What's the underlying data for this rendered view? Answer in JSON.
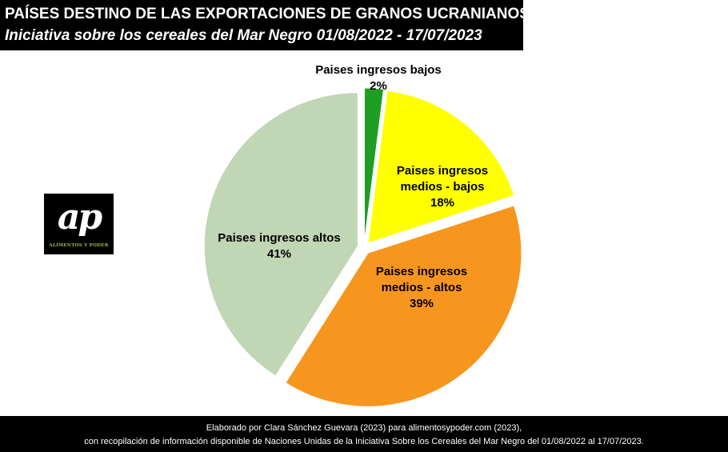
{
  "header": {
    "title": "PAÍSES DESTINO DE LAS EXPORTACIONES DE GRANOS UCRANIANOS",
    "subtitle": "Iniciativa sobre los cereales del Mar Negro 01/08/2022 - 17/07/2023"
  },
  "logo": {
    "mark": "ap",
    "text": "ALIMENTOS Y PODER"
  },
  "chart_data": {
    "type": "pie",
    "title": "",
    "legend": "none",
    "slices": [
      {
        "label_lines": [
          "Paises ingresos bajos"
        ],
        "value": 2,
        "value_label": "2%",
        "color": "#1e9e23"
      },
      {
        "label_lines": [
          "Paises ingresos",
          "medios - bajos"
        ],
        "value": 18,
        "value_label": "18%",
        "color": "#ffff00"
      },
      {
        "label_lines": [
          "Paises ingresos",
          "medios - altos"
        ],
        "value": 39,
        "value_label": "39%",
        "color": "#f7961e"
      },
      {
        "label_lines": [
          "Paises ingresos altos"
        ],
        "value": 41,
        "value_label": "41%",
        "color": "#c0d6b4"
      }
    ]
  },
  "footer": {
    "line1": "Elaborado por Clara Sánchez Guevara (2023) para alimentosypoder.com (2023),",
    "line2": "con recopilación de información disponible de Naciones Unidas de la Iniciativa Sobre los Cereales del Mar Negro del 01/08/2022 al 17/07/2023."
  }
}
